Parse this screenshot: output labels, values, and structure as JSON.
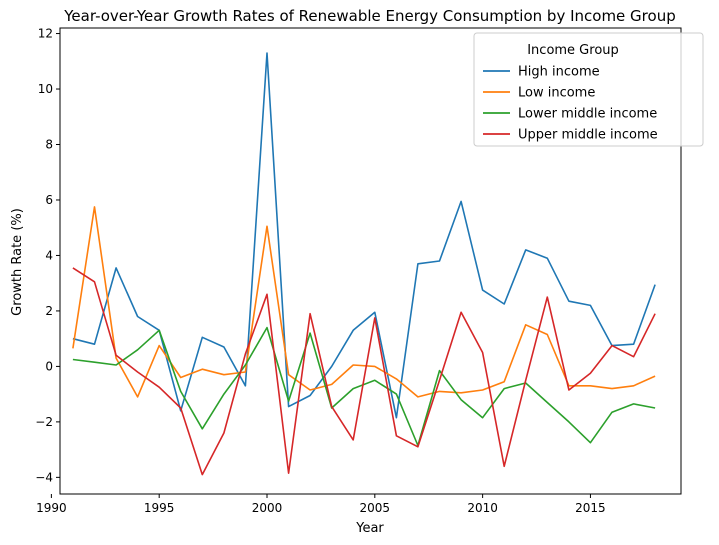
{
  "chart_data": {
    "type": "line",
    "title": "Year-over-Year Growth Rates of Renewable Energy Consumption by Income Group",
    "xlabel": "Year",
    "ylabel": "Growth Rate (%)",
    "xlim": [
      1990.4,
      2019.2
    ],
    "ylim": [
      -4.6,
      12.2
    ],
    "xticks": [
      1990,
      1995,
      2000,
      2005,
      2010,
      2015
    ],
    "yticks": [
      -4,
      -2,
      0,
      2,
      4,
      6,
      8,
      10,
      12
    ],
    "grid": false,
    "legend": {
      "title": "Income Group",
      "placement": "top-right"
    },
    "x": [
      1991,
      1992,
      1993,
      1994,
      1995,
      1996,
      1997,
      1998,
      1999,
      2000,
      2001,
      2002,
      2003,
      2004,
      2005,
      2006,
      2007,
      2008,
      2009,
      2010,
      2011,
      2012,
      2013,
      2014,
      2015,
      2016,
      2017,
      2018
    ],
    "series": [
      {
        "name": "High income",
        "color": "#1f77b4",
        "values": [
          1.0,
          0.8,
          3.55,
          1.8,
          1.3,
          -1.6,
          1.05,
          0.7,
          -0.7,
          11.3,
          -1.45,
          -1.05,
          0.0,
          1.3,
          1.95,
          -1.85,
          3.7,
          3.8,
          5.95,
          2.75,
          2.25,
          4.2,
          3.9,
          2.35,
          2.2,
          0.75,
          0.8,
          2.95
        ]
      },
      {
        "name": "Low income",
        "color": "#ff7f0e",
        "values": [
          0.65,
          5.75,
          0.3,
          -1.1,
          0.75,
          -0.4,
          -0.1,
          -0.3,
          -0.2,
          5.05,
          -0.3,
          -0.85,
          -0.65,
          0.05,
          0.0,
          -0.45,
          -1.1,
          -0.9,
          -0.95,
          -0.85,
          -0.55,
          1.5,
          1.15,
          -0.7,
          -0.7,
          -0.8,
          -0.7,
          -0.35
        ]
      },
      {
        "name": "Lower middle income",
        "color": "#2ca02c",
        "values": [
          0.25,
          0.15,
          0.05,
          0.6,
          1.3,
          -0.9,
          -2.25,
          -1.0,
          0.05,
          1.4,
          -1.25,
          1.2,
          -1.5,
          -0.8,
          -0.5,
          -1.0,
          -2.85,
          -0.15,
          -1.2,
          -1.85,
          -0.8,
          -0.6,
          -1.3,
          -2.0,
          -2.75,
          -1.65,
          -1.35,
          -1.5
        ]
      },
      {
        "name": "Upper middle income",
        "color": "#d62728",
        "values": [
          3.55,
          3.05,
          0.4,
          -0.2,
          -0.75,
          -1.5,
          -3.9,
          -2.4,
          0.45,
          2.6,
          -3.85,
          1.9,
          -1.45,
          -2.65,
          1.75,
          -2.5,
          -2.9,
          -0.5,
          1.95,
          0.5,
          -3.6,
          -0.5,
          2.5,
          -0.85,
          -0.25,
          0.75,
          0.35,
          1.9
        ]
      }
    ]
  }
}
